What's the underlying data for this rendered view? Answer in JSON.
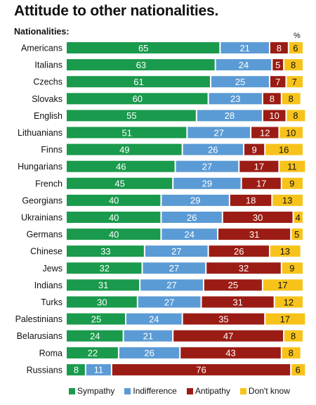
{
  "title": "Attitude to other nationalities.",
  "subtitle": "Nationalities:",
  "unit_label": "%",
  "colors": {
    "Sympathy": "#1a9a4c",
    "Indifference": "#5b9bd5",
    "Antipathy": "#9b1c14",
    "Don't know": "#f7c31a"
  },
  "chart_data": {
    "type": "bar",
    "orientation": "horizontal",
    "stacked": true,
    "title": "Attitude to other nationalities.",
    "ylabel": "Nationalities:",
    "xlim": [
      0,
      100
    ],
    "categories": [
      "Americans",
      "Italians",
      "Czechs",
      "Slovaks",
      "English",
      "Lithuanians",
      "Finns",
      "Hungarians",
      "French",
      "Georgians",
      "Ukrainians",
      "Germans",
      "Chinese",
      "Jews",
      "Indians",
      "Turks",
      "Palestinians",
      "Belarusians",
      "Roma",
      "Russians"
    ],
    "series": [
      {
        "name": "Sympathy",
        "values": [
          65,
          63,
          61,
          60,
          55,
          51,
          49,
          46,
          45,
          40,
          40,
          40,
          33,
          32,
          31,
          30,
          25,
          24,
          22,
          8
        ]
      },
      {
        "name": "Indifference",
        "values": [
          21,
          24,
          25,
          23,
          28,
          27,
          26,
          27,
          29,
          29,
          26,
          24,
          27,
          27,
          27,
          27,
          24,
          21,
          26,
          11
        ]
      },
      {
        "name": "Antipathy",
        "values": [
          8,
          5,
          7,
          8,
          10,
          12,
          9,
          17,
          17,
          18,
          30,
          31,
          26,
          32,
          25,
          31,
          35,
          47,
          43,
          76
        ]
      },
      {
        "name": "Don't know",
        "values": [
          6,
          8,
          7,
          8,
          8,
          10,
          16,
          11,
          9,
          13,
          4,
          5,
          13,
          9,
          17,
          12,
          17,
          8,
          8,
          6
        ]
      }
    ],
    "legend": "bottom"
  }
}
